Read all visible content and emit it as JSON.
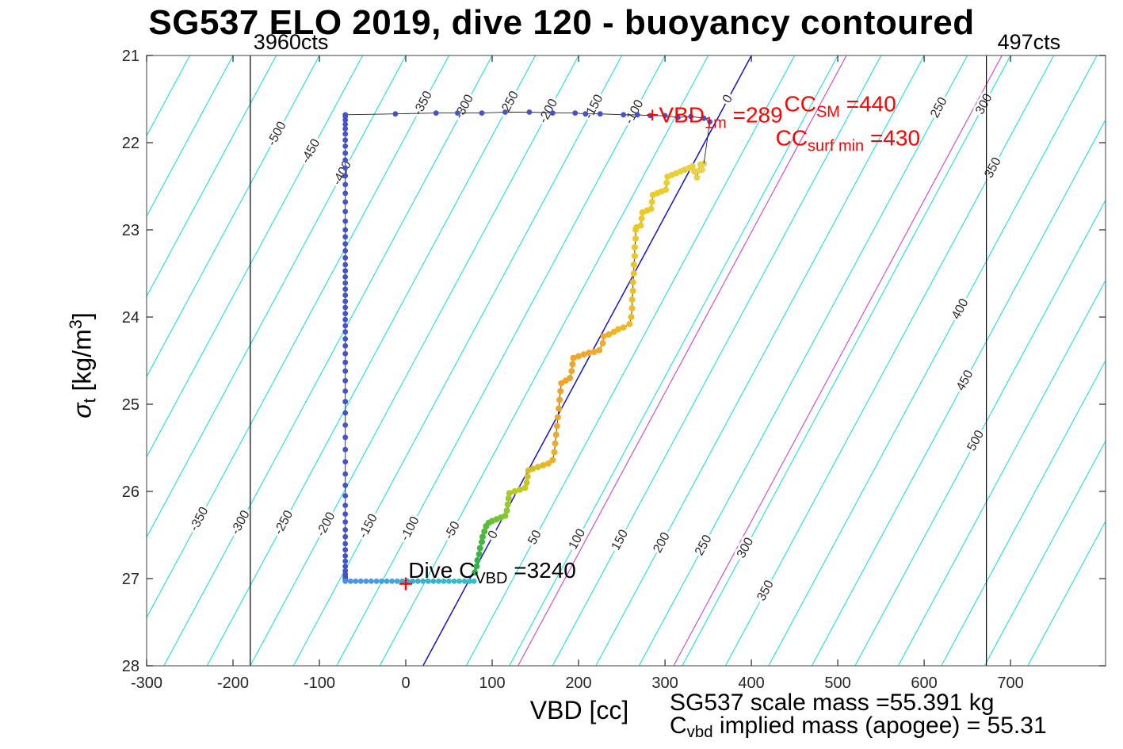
{
  "chart_data": {
    "type": "scatter",
    "title": "SG537 ELO 2019, dive 120 - buoyancy contoured",
    "xlabel": "VBD [cc]",
    "ylabel": "sigma_t [kg/m^3]",
    "ylabel_parts": [
      {
        "t": "σ",
        "italic": true
      },
      {
        "t": "t",
        "sub": true
      },
      {
        "t": " [kg/m"
      },
      {
        "t": "3",
        "sup": true
      },
      {
        "t": "]"
      }
    ],
    "xlim": [
      -300,
      810
    ],
    "ylim": [
      21,
      28
    ],
    "y_axis_reversed": true,
    "xticks": [
      -300,
      -200,
      -100,
      0,
      100,
      200,
      300,
      400,
      500,
      600,
      700
    ],
    "yticks": [
      21,
      22,
      23,
      24,
      25,
      26,
      27,
      28
    ],
    "axis_color": "#262626",
    "contours": {
      "level_min": -700,
      "level_max": 700,
      "level_step": 50,
      "slope_cc_per_sigma": 54.3,
      "x_intercept_at_sigma28_for_level0": 20,
      "line_color": "#00dfdf",
      "zero_level_color": "#1212d2",
      "label_color": "#2a2a2a",
      "labels": [
        {
          "level": -500,
          "sigmas": [
            21.9
          ]
        },
        {
          "level": -450,
          "sigmas": [
            22.1
          ]
        },
        {
          "level": -400,
          "sigmas": [
            22.35
          ]
        },
        {
          "level": -350,
          "sigmas": [
            21.55,
            26.32
          ]
        },
        {
          "level": -300,
          "sigmas": [
            21.59,
            26.36
          ]
        },
        {
          "level": -250,
          "sigmas": [
            21.55,
            26.36
          ]
        },
        {
          "level": -200,
          "sigmas": [
            21.64,
            26.38
          ]
        },
        {
          "level": -150,
          "sigmas": [
            21.59,
            26.4
          ]
        },
        {
          "level": -100,
          "sigmas": [
            21.65,
            26.43
          ]
        },
        {
          "level": -50,
          "sigmas": [
            26.45
          ]
        },
        {
          "level": 0,
          "sigmas": [
            21.5,
            26.5
          ]
        },
        {
          "level": 50,
          "sigmas": [
            26.53
          ]
        },
        {
          "level": 100,
          "sigmas": [
            26.55
          ]
        },
        {
          "level": 150,
          "sigmas": [
            26.56
          ]
        },
        {
          "level": 200,
          "sigmas": [
            26.59
          ]
        },
        {
          "level": 250,
          "sigmas": [
            21.6,
            26.62
          ]
        },
        {
          "level": 300,
          "sigmas": [
            21.56,
            26.65
          ]
        },
        {
          "level": 350,
          "sigmas": [
            22.29,
            27.14
          ]
        },
        {
          "level": 400,
          "sigmas": [
            23.91
          ]
        },
        {
          "level": 450,
          "sigmas": [
            24.73
          ]
        },
        {
          "level": 500,
          "sigmas": [
            25.42
          ]
        }
      ],
      "extra_lines": [
        {
          "x_at_sigma28": 130,
          "color": "#cc4fd6"
        },
        {
          "x_at_sigma28": 310,
          "color": "#cc4fd6"
        }
      ]
    },
    "reference_lines": [
      {
        "x": -180,
        "label": "3960cts"
      },
      {
        "x": 672,
        "label": "497cts"
      }
    ],
    "series": {
      "surface_drift": {
        "dot_color": "#4453cb",
        "line_color": "#222222",
        "points": [
          [
            352,
            21.76
          ],
          [
            345,
            21.72
          ],
          [
            330,
            21.7
          ],
          [
            315,
            21.71
          ],
          [
            300,
            21.69
          ],
          [
            283,
            21.69
          ],
          [
            268,
            21.68
          ],
          [
            252,
            21.68
          ],
          [
            225,
            21.67
          ],
          [
            208,
            21.67
          ],
          [
            196,
            21.66
          ],
          [
            170,
            21.66
          ],
          [
            143,
            21.65
          ],
          [
            115,
            21.65
          ],
          [
            88,
            21.66
          ],
          [
            60,
            21.66
          ],
          [
            35,
            21.66
          ],
          [
            -12,
            21.67
          ],
          [
            -70,
            21.68
          ]
        ]
      },
      "descent": {
        "dot_color": "#4453cb",
        "line_color": "#222222",
        "x": -70,
        "sigmas": [
          21.7,
          21.74,
          21.79,
          21.84,
          21.9,
          21.97,
          22.04,
          22.12,
          22.2,
          22.29,
          22.38,
          22.48,
          22.58,
          22.68,
          22.79,
          22.9,
          23.0,
          23.08,
          23.16,
          23.24,
          23.32,
          23.4,
          23.47,
          23.54,
          23.61,
          23.68,
          23.75,
          23.82,
          23.89,
          23.96,
          24.03,
          24.1,
          24.17,
          24.25,
          24.33,
          24.42,
          24.52,
          24.62,
          24.73,
          24.85,
          24.97,
          25.1,
          25.24,
          25.38,
          25.52,
          25.66,
          25.8,
          25.93,
          26.05,
          26.16,
          26.26,
          26.35,
          26.44,
          26.52,
          26.6,
          26.67,
          26.74,
          26.8,
          26.86,
          26.91,
          26.95,
          26.98,
          27.0,
          27.02
        ]
      },
      "apogee_pump": {
        "dot_color_start": "#4a90e8",
        "dot_color_end": "#2ec4c4",
        "line_color": "#222222",
        "sigma": 27.03,
        "xs": [
          -70,
          -64,
          -58,
          -52,
          -46,
          -40,
          -34,
          -28,
          -22,
          -16,
          -10,
          -4,
          2,
          8,
          14,
          20,
          26,
          32,
          38,
          44,
          50,
          56,
          62,
          68,
          74,
          79
        ]
      },
      "climb": {
        "line_color": "#222222",
        "gradient": [
          [
            0,
            "#2db04a"
          ],
          [
            0.08,
            "#4cbc3c"
          ],
          [
            0.15,
            "#8cc72e"
          ],
          [
            0.22,
            "#c0cc24"
          ],
          [
            0.3,
            "#e8b428"
          ],
          [
            0.38,
            "#f0a428"
          ],
          [
            0.5,
            "#f0a62a"
          ],
          [
            0.58,
            "#edb824"
          ],
          [
            0.7,
            "#ecc722"
          ],
          [
            0.85,
            "#eacd2c"
          ],
          [
            1,
            "#e6d355"
          ]
        ],
        "points": [
          [
            80,
            26.93
          ],
          [
            82,
            26.86
          ],
          [
            83,
            26.79
          ],
          [
            85,
            26.72
          ],
          [
            86,
            26.65
          ],
          [
            88,
            26.58
          ],
          [
            89,
            26.52
          ],
          [
            91,
            26.46
          ],
          [
            93,
            26.4
          ],
          [
            96,
            26.36
          ],
          [
            100,
            26.34
          ],
          [
            105,
            26.32
          ],
          [
            110,
            26.3
          ],
          [
            115,
            26.28
          ],
          [
            117,
            26.22
          ],
          [
            118,
            26.15
          ],
          [
            119,
            26.08
          ],
          [
            120,
            26.02
          ],
          [
            126,
            26.0
          ],
          [
            132,
            25.98
          ],
          [
            138,
            25.96
          ],
          [
            140,
            25.9
          ],
          [
            141,
            25.83
          ],
          [
            142,
            25.76
          ],
          [
            147,
            25.74
          ],
          [
            153,
            25.72
          ],
          [
            159,
            25.7
          ],
          [
            165,
            25.68
          ],
          [
            170,
            25.64
          ],
          [
            172,
            25.55
          ],
          [
            173,
            25.45
          ],
          [
            174,
            25.35
          ],
          [
            175,
            25.25
          ],
          [
            176,
            25.15
          ],
          [
            177,
            25.05
          ],
          [
            178,
            24.95
          ],
          [
            179,
            24.85
          ],
          [
            180,
            24.76
          ],
          [
            185,
            24.73
          ],
          [
            190,
            24.7
          ],
          [
            192,
            24.62
          ],
          [
            193,
            24.54
          ],
          [
            194,
            24.47
          ],
          [
            200,
            24.45
          ],
          [
            206,
            24.43
          ],
          [
            212,
            24.41
          ],
          [
            218,
            24.4
          ],
          [
            224,
            24.38
          ],
          [
            228,
            24.3
          ],
          [
            229,
            24.22
          ],
          [
            235,
            24.2
          ],
          [
            241,
            24.17
          ],
          [
            246,
            24.14
          ],
          [
            252,
            24.12
          ],
          [
            259,
            24.08
          ],
          [
            261,
            24.0
          ],
          [
            262,
            23.9
          ],
          [
            262,
            23.8
          ],
          [
            263,
            23.7
          ],
          [
            263,
            23.6
          ],
          [
            264,
            23.5
          ],
          [
            264,
            23.4
          ],
          [
            265,
            23.3
          ],
          [
            265,
            23.2
          ],
          [
            266,
            23.1
          ],
          [
            266,
            23.0
          ],
          [
            267,
            22.97
          ],
          [
            272,
            22.95
          ],
          [
            273,
            22.87
          ],
          [
            274,
            22.8
          ],
          [
            279,
            22.78
          ],
          [
            284,
            22.76
          ],
          [
            285,
            22.68
          ],
          [
            286,
            22.6
          ],
          [
            291,
            22.58
          ],
          [
            296,
            22.56
          ],
          [
            301,
            22.54
          ],
          [
            302,
            22.46
          ],
          [
            303,
            22.39
          ],
          [
            308,
            22.37
          ],
          [
            313,
            22.35
          ],
          [
            318,
            22.33
          ],
          [
            323,
            22.31
          ],
          [
            328,
            22.29
          ],
          [
            332,
            22.27
          ],
          [
            334,
            22.33
          ],
          [
            337,
            22.4
          ],
          [
            339,
            22.32
          ],
          [
            341,
            22.25
          ],
          [
            343,
            22.31
          ],
          [
            345,
            22.24
          ]
        ]
      },
      "link": {
        "line_color": "#222222",
        "points": [
          [
            345,
            22.24
          ],
          [
            352,
            21.76
          ]
        ]
      },
      "start_marker": {
        "shape": "plus",
        "x": 0,
        "sigma": 27.06,
        "color": "#ff0000"
      }
    },
    "annotations": [
      {
        "name": "dive-cvbd-label",
        "color": "#000000",
        "font_px": 28,
        "x": 3,
        "sigma": 26.99,
        "parts": [
          {
            "t": "Dive C"
          },
          {
            "t": "VBD",
            "sub": true
          },
          {
            "t": " =3240"
          }
        ]
      },
      {
        "name": "vbd-1m-label",
        "color": "#ff0000",
        "font_px": 28,
        "x": 278,
        "sigma": 21.77,
        "parts": [
          {
            "t": "+VBD"
          },
          {
            "t": "1m",
            "sub": true
          },
          {
            "t": " =289"
          }
        ]
      },
      {
        "name": "cc-sm-label",
        "color": "#ff0000",
        "font_px": 28,
        "x": 438,
        "sigma": 21.64,
        "parts": [
          {
            "t": "CC"
          },
          {
            "t": "SM",
            "sub": true
          },
          {
            "t": " =440"
          }
        ]
      },
      {
        "name": "cc-surf-min-label",
        "color": "#ff0000",
        "font_px": 28,
        "x": 428,
        "sigma": 22.03,
        "parts": [
          {
            "t": "CC"
          },
          {
            "t": "surf min",
            "sub": true
          },
          {
            "t": " =430"
          }
        ]
      }
    ],
    "footnotes": [
      {
        "name": "scale-mass-note",
        "parts": [
          {
            "t": "SG537 scale mass =55.391 kg"
          }
        ]
      },
      {
        "name": "implied-mass-note",
        "parts": [
          {
            "t": "C"
          },
          {
            "t": "vbd",
            "sub": true
          },
          {
            "t": " implied mass (apogee) = 55.31"
          }
        ]
      }
    ]
  }
}
